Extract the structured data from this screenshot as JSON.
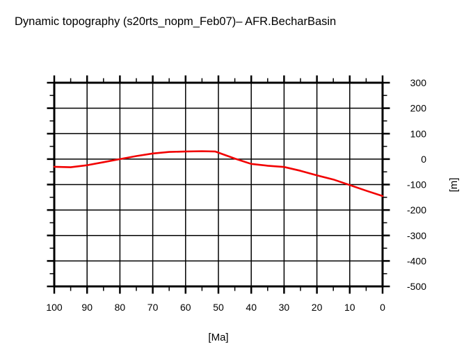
{
  "title": "Dynamic topography (s20rts_nopm_Feb07)– AFR.BecharBasin",
  "colors": {
    "line": "#f20000",
    "axis": "#000000",
    "background": "#ffffff"
  },
  "chart_data": {
    "type": "line",
    "title": "Dynamic topography (s20rts_nopm_Feb07)– AFR.BecharBasin",
    "xlabel": "[Ma]",
    "ylabel": "[m]",
    "grid": "solid black lines at major ticks, on",
    "legend": "none",
    "x_axis": {
      "min": 0,
      "max": 100,
      "reversed": true,
      "major_tick_interval": 10,
      "minor_tick_interval": 5,
      "tick_labels": [
        "100",
        "90",
        "80",
        "70",
        "60",
        "50",
        "40",
        "30",
        "20",
        "10",
        "0"
      ]
    },
    "y_axis": {
      "min": -500,
      "max": 300,
      "labels_side": "right",
      "major_tick_interval": 100,
      "minor_tick_interval": 50,
      "tick_labels": [
        "300",
        "200",
        "100",
        "0",
        "-100",
        "-200",
        "-300",
        "-400",
        "-500"
      ]
    },
    "series": [
      {
        "name": "dynamic_topography",
        "color": "#f20000",
        "x": [
          100,
          95,
          90,
          85,
          80,
          75,
          70,
          65,
          60,
          55,
          51,
          45,
          40,
          35,
          30,
          25,
          20,
          15,
          10,
          5,
          0
        ],
        "y": [
          -30,
          -32,
          -24,
          -12,
          0,
          12,
          22,
          28,
          30,
          31,
          30,
          2,
          -19,
          -26,
          -31,
          -46,
          -64,
          -80,
          -102,
          -124,
          -145
        ]
      }
    ]
  }
}
